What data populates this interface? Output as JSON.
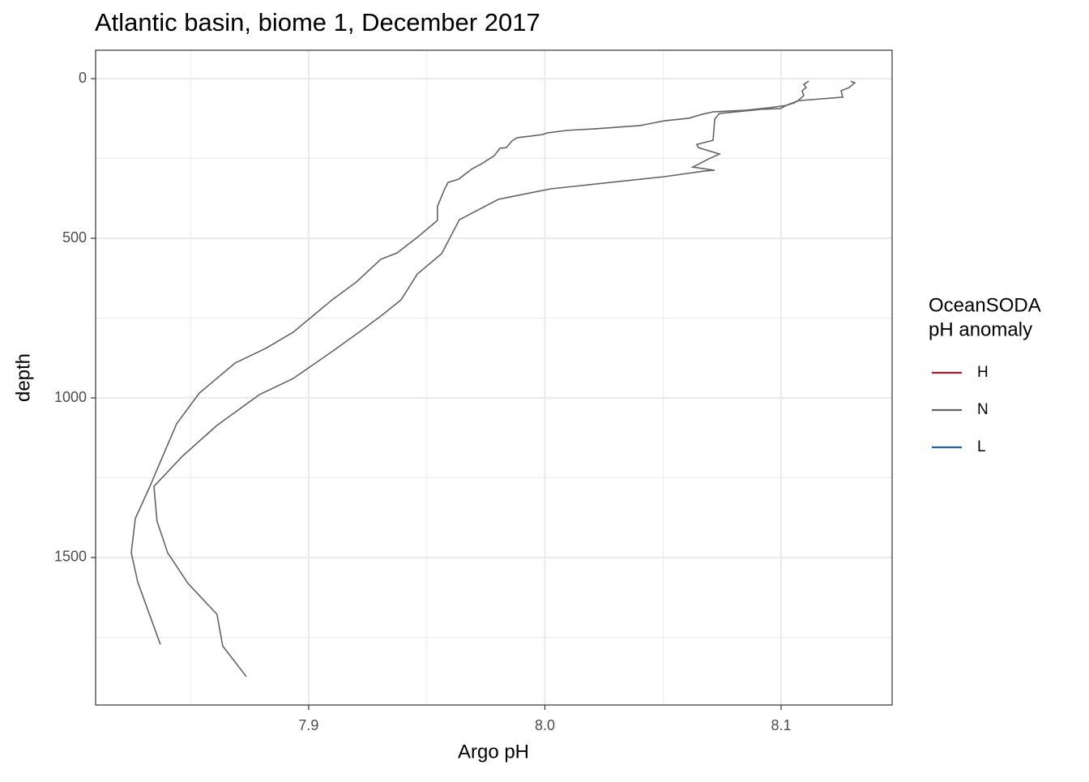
{
  "chart_data": {
    "type": "line",
    "title": "Atlantic basin, biome 1, December 2017",
    "x_label": "Argo pH",
    "y_label": "depth",
    "legend_title": [
      "OceanSODA",
      "pH anomaly"
    ],
    "legend_position": "right",
    "xlim": [
      7.8098,
      8.147
    ],
    "xticks": [
      7.9,
      {
        "value": 8,
        "label": "8.0"
      },
      8.1
    ],
    "x_minor_grid": [
      7.85,
      7.95,
      8.05
    ],
    "ylim": [
      -89,
      1962
    ],
    "y_reversed": true,
    "yticks": [
      0,
      500,
      1000,
      1500
    ],
    "y_minor_grid": [
      250,
      750,
      1250,
      1750
    ],
    "grid": true,
    "series": [
      {
        "name": "H",
        "color": "#b2182b",
        "profiles": []
      },
      {
        "name": "N",
        "color": "#636363",
        "profiles": [
          {
            "x": [
              8.1117,
              8.1096,
              8.1106,
              8.1089,
              8.1096,
              8.1072,
              8.1055,
              8.1021,
              8.0952,
              8.0849,
              8.0712,
              8.0664,
              8.0609,
              8.0506,
              8.0437,
              8.0403,
              8.0214,
              8.0094,
              8.0009,
              7.9991,
              7.994,
              7.9882,
              7.9861,
              7.9837,
              7.981,
              7.9786,
              7.9734,
              7.9693,
              7.9666,
              7.9635,
              7.959,
              7.9573,
              7.9545,
              7.9545,
              7.946,
              7.9374,
              7.9305,
              7.9202,
              7.9099,
              7.8935,
              7.8818,
              7.8688,
              7.8537,
              7.8441,
              7.8379,
              7.8328,
              7.8266,
              7.8249,
              7.8276,
              7.8372
            ],
            "y": [
              8,
              18,
              28,
              38,
              53,
              69,
              76,
              84,
              91,
              99,
              104,
              112,
              124,
              132,
              142,
              147,
              157,
              162,
              170,
              175,
              180,
              185,
              195,
              216,
              218,
              241,
              266,
              282,
              297,
              315,
              325,
              350,
              401,
              444,
              497,
              546,
              566,
              637,
              693,
              794,
              845,
              891,
              985,
              1081,
              1188,
              1277,
              1378,
              1485,
              1576,
              1772
            ]
          },
          {
            "x": [
              8.1295,
              8.1312,
              8.1288,
              8.1254,
              8.1261,
              8.1175,
              8.1072,
              8.1021,
              8.0997,
              8.0918,
              8.0739,
              8.0719,
              8.0712,
              8.0643,
              8.065,
              8.0739,
              8.0695,
              8.0626,
              8.0719,
              8.0678,
              8.0506,
              8.0026,
              7.9957,
              7.9803,
              7.9638,
              7.9563,
              7.946,
              7.9391,
              7.9305,
              7.9223,
              7.9099,
              7.8935,
              7.8791,
              7.8612,
              7.8465,
              7.8345,
              7.8358,
              7.8403,
              7.8489,
              7.8612,
              7.8636,
              7.8736
            ],
            "y": [
              8,
              13,
              28,
              38,
              58,
              63,
              69,
              84,
              94,
              96,
              109,
              127,
              193,
              206,
              216,
              236,
              251,
              277,
              287,
              289,
              307,
              345,
              355,
              378,
              442,
              548,
              612,
              693,
              744,
              789,
              855,
              939,
              990,
              1086,
              1183,
              1277,
              1386,
              1485,
              1581,
              1678,
              1777,
              1873
            ]
          }
        ]
      },
      {
        "name": "L",
        "color": "#2166ac",
        "profiles": []
      }
    ]
  }
}
